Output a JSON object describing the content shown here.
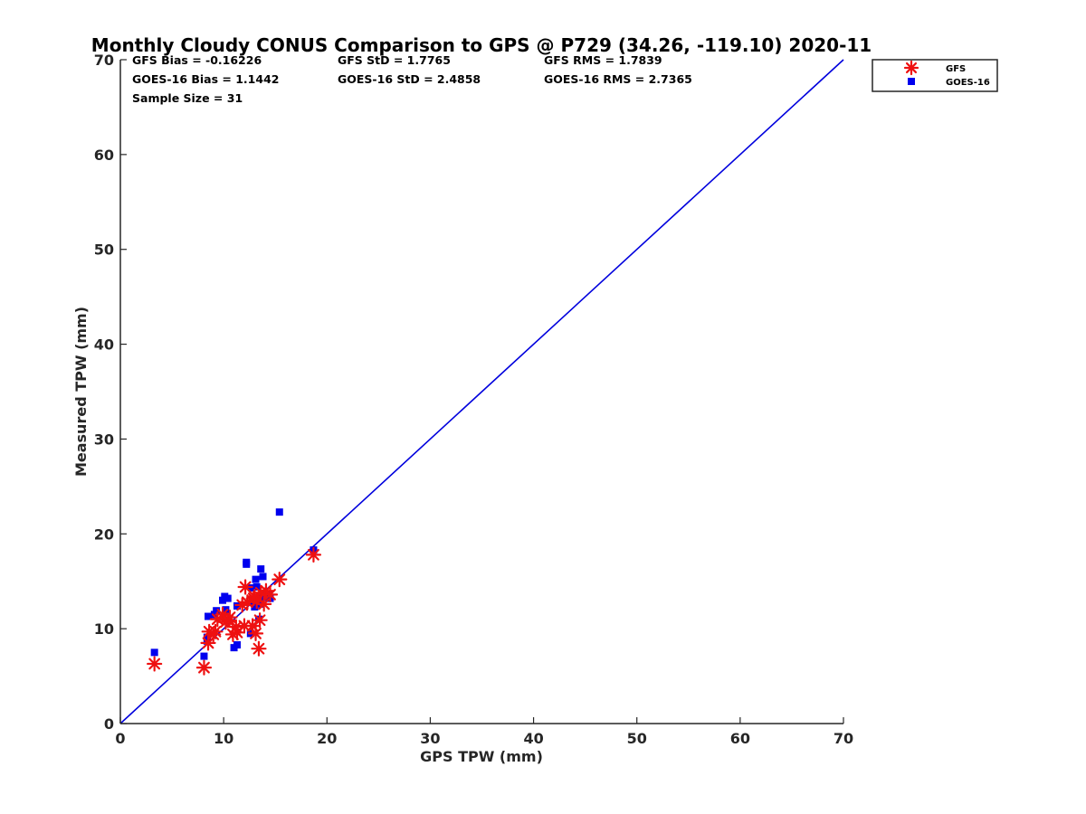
{
  "chart_data": {
    "type": "scatter",
    "title": "Monthly Cloudy CONUS Comparison to GPS @ P729 (34.26, -119.10) 2020-11",
    "xlabel": "GPS TPW (mm)",
    "ylabel": "Measured TPW (mm)",
    "xlim": [
      0,
      70
    ],
    "ylim": [
      0,
      70
    ],
    "xticks": [
      "0",
      "10",
      "20",
      "30",
      "40",
      "50",
      "60",
      "70"
    ],
    "yticks": [
      "0",
      "10",
      "20",
      "30",
      "40",
      "50",
      "60",
      "70"
    ],
    "grid": false,
    "legend_position": "top-right",
    "stats": {
      "gfs_bias": "GFS Bias = -0.16226",
      "gfs_std": "GFS StD = 1.7765",
      "gfs_rms": "GFS RMS = 1.7839",
      "goes_bias": "GOES-16 Bias = 1.1442",
      "goes_std": "GOES-16 StD = 2.4858",
      "goes_rms": "GOES-16 RMS = 2.7365",
      "sample_size": "Sample Size = 31"
    },
    "reference_line": {
      "x": [
        0,
        70
      ],
      "y": [
        0,
        70
      ],
      "color": "#0000dd"
    },
    "series": [
      {
        "name": "GFS",
        "marker": "asterisk",
        "color": "#ee1111",
        "points": [
          [
            3.3,
            6.3
          ],
          [
            8.1,
            5.9
          ],
          [
            8.5,
            8.5
          ],
          [
            8.6,
            9.7
          ],
          [
            9.2,
            9.7
          ],
          [
            9.4,
            11.0
          ],
          [
            9.9,
            11.5
          ],
          [
            10.2,
            10.7
          ],
          [
            10.6,
            11.2
          ],
          [
            10.9,
            9.4
          ],
          [
            11.2,
            10.2
          ],
          [
            11.3,
            9.6
          ],
          [
            12.0,
            10.3
          ],
          [
            12.1,
            14.4
          ],
          [
            12.3,
            12.8
          ],
          [
            12.8,
            10.3
          ],
          [
            12.9,
            13.2
          ],
          [
            13.1,
            9.5
          ],
          [
            13.2,
            12.9
          ],
          [
            13.4,
            7.9
          ],
          [
            13.5,
            10.9
          ],
          [
            13.6,
            13.8
          ],
          [
            13.9,
            12.6
          ],
          [
            14.1,
            14.0
          ],
          [
            14.5,
            13.6
          ],
          [
            15.4,
            15.2
          ],
          [
            18.7,
            17.8
          ],
          [
            9.0,
            9.4
          ],
          [
            10.4,
            10.9
          ],
          [
            11.8,
            12.5
          ],
          [
            13.0,
            13.4
          ]
        ]
      },
      {
        "name": "GOES-16",
        "marker": "square",
        "color": "#0000ee",
        "points": [
          [
            3.3,
            7.5
          ],
          [
            8.1,
            7.1
          ],
          [
            8.4,
            8.7
          ],
          [
            8.4,
            9.1
          ],
          [
            8.5,
            11.3
          ],
          [
            9.1,
            11.5
          ],
          [
            9.3,
            11.9
          ],
          [
            9.9,
            13.0
          ],
          [
            10.1,
            13.4
          ],
          [
            10.2,
            12.0
          ],
          [
            10.4,
            13.2
          ],
          [
            11.0,
            8.0
          ],
          [
            11.3,
            8.3
          ],
          [
            11.3,
            12.4
          ],
          [
            12.2,
            16.8
          ],
          [
            12.2,
            17.0
          ],
          [
            12.6,
            9.5
          ],
          [
            12.7,
            14.3
          ],
          [
            13.0,
            12.3
          ],
          [
            13.1,
            15.2
          ],
          [
            13.2,
            14.4
          ],
          [
            13.4,
            11.0
          ],
          [
            13.5,
            12.6
          ],
          [
            13.6,
            16.3
          ],
          [
            13.8,
            15.5
          ],
          [
            13.9,
            13.3
          ],
          [
            14.1,
            13.4
          ],
          [
            14.4,
            13.6
          ],
          [
            14.5,
            13.2
          ],
          [
            15.4,
            22.3
          ],
          [
            18.7,
            18.3
          ]
        ]
      }
    ]
  }
}
